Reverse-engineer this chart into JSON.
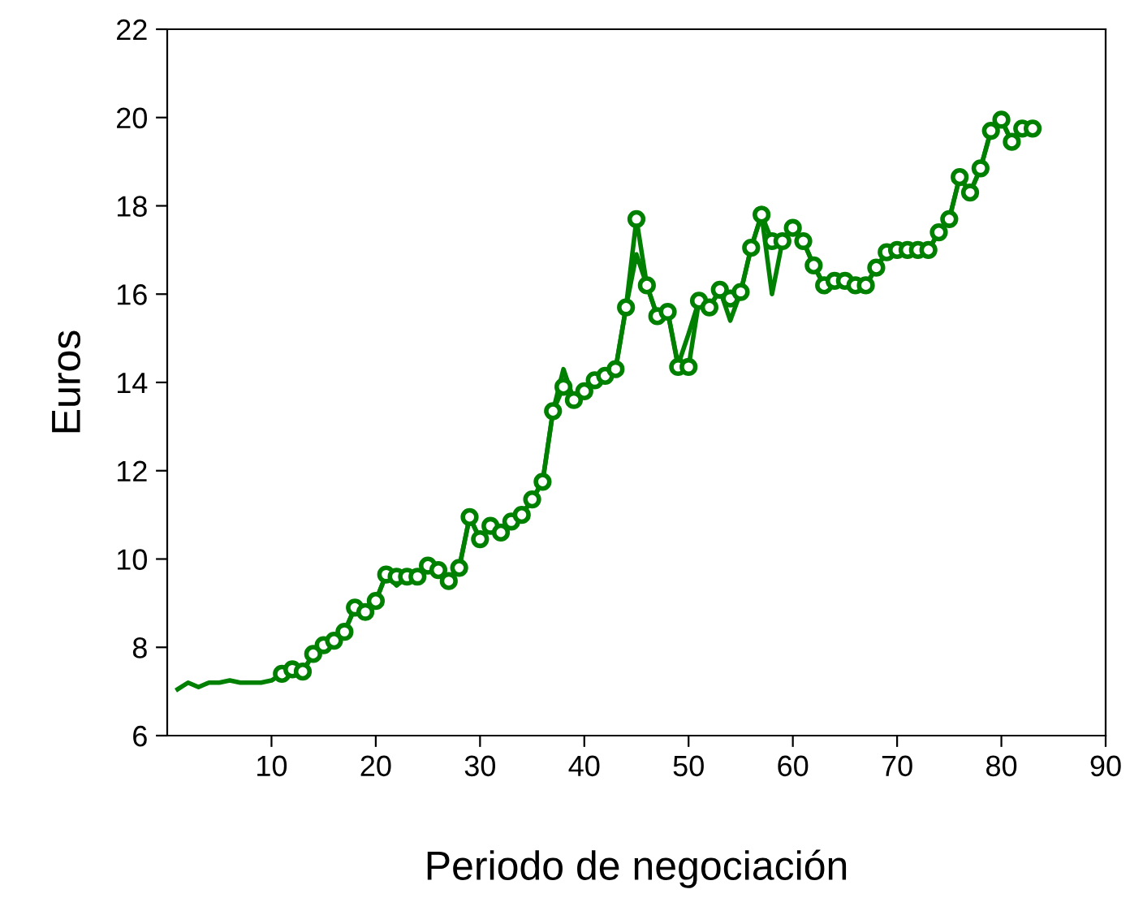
{
  "chart_data": {
    "type": "line",
    "xlabel": "Periodo de negociación",
    "ylabel": "Euros",
    "xlim": [
      0,
      90
    ],
    "xticks": [
      10,
      20,
      30,
      40,
      50,
      60,
      70,
      80,
      90
    ],
    "ylim": [
      6,
      22
    ],
    "yticks": [
      6,
      8,
      10,
      12,
      14,
      16,
      18,
      20,
      22
    ],
    "grid": false,
    "legend": false,
    "series": [
      {
        "color": "#008000",
        "marker": "circle",
        "x": [
          11,
          12,
          13,
          14,
          15,
          16,
          17,
          18,
          19,
          20,
          21,
          22,
          23,
          24,
          25,
          26,
          27,
          28,
          29,
          30,
          31,
          32,
          33,
          34,
          35,
          36,
          37,
          38,
          39,
          40,
          41,
          42,
          43,
          44,
          45,
          46,
          47,
          48,
          49,
          50,
          51,
          52,
          53,
          54,
          55,
          56,
          57,
          58,
          59,
          60,
          61,
          62,
          63,
          64,
          65,
          66,
          67,
          68,
          69,
          70,
          71,
          72,
          73,
          74,
          75,
          76,
          77,
          78,
          79,
          80,
          81,
          82,
          83
        ],
        "values": [
          7.4,
          7.5,
          7.45,
          7.85,
          8.05,
          8.15,
          8.35,
          8.9,
          8.8,
          9.05,
          9.65,
          9.6,
          9.6,
          9.6,
          9.85,
          9.75,
          9.5,
          9.8,
          10.95,
          10.45,
          10.75,
          10.6,
          10.85,
          11.0,
          11.35,
          11.75,
          13.35,
          13.9,
          13.6,
          13.8,
          14.05,
          14.15,
          14.3,
          15.7,
          17.7,
          16.2,
          15.5,
          15.6,
          14.35,
          14.35,
          15.85,
          15.7,
          16.1,
          15.9,
          16.05,
          17.05,
          17.8,
          17.2,
          17.2,
          17.5,
          17.2,
          16.65,
          16.2,
          16.3,
          16.3,
          16.2,
          16.2,
          16.6,
          16.95,
          17.0,
          17.0,
          17.0,
          17.0,
          17.4,
          17.7,
          18.65,
          18.3,
          18.85,
          19.7,
          19.95,
          19.45,
          19.75,
          19.75
        ]
      },
      {
        "color": "#008000",
        "marker": "none",
        "x": [
          1,
          2,
          3,
          4,
          5,
          6,
          7,
          8,
          9,
          10,
          11,
          12,
          13,
          14,
          15,
          16,
          17,
          18,
          19,
          20,
          21,
          22,
          23,
          24,
          25,
          26,
          27,
          28,
          29,
          30,
          31,
          32,
          33,
          34,
          35,
          36,
          37,
          38,
          39,
          40,
          41,
          42,
          43,
          44,
          45,
          46,
          47,
          48,
          49,
          50,
          51,
          52,
          53,
          54,
          55,
          56,
          57,
          58,
          59,
          60,
          61,
          62,
          63,
          64,
          65,
          66,
          67,
          68,
          69,
          70,
          71,
          72,
          73,
          74,
          75,
          76,
          77,
          78,
          79,
          80,
          81,
          82,
          83
        ],
        "values": [
          7.05,
          7.2,
          7.1,
          7.2,
          7.2,
          7.25,
          7.2,
          7.2,
          7.2,
          7.25,
          7.4,
          7.5,
          7.45,
          7.85,
          8.05,
          8.15,
          8.35,
          8.9,
          8.8,
          9.05,
          9.65,
          9.4,
          9.6,
          9.6,
          9.85,
          9.75,
          9.5,
          9.8,
          10.95,
          10.45,
          10.75,
          10.6,
          10.85,
          11.0,
          11.35,
          11.75,
          13.35,
          14.3,
          13.6,
          13.8,
          14.05,
          14.15,
          14.3,
          15.7,
          16.9,
          16.2,
          15.5,
          15.6,
          14.4,
          15.1,
          15.85,
          15.7,
          16.1,
          15.4,
          16.05,
          17.05,
          17.8,
          16.0,
          17.2,
          17.5,
          17.2,
          16.65,
          16.2,
          16.3,
          16.3,
          16.2,
          16.2,
          16.6,
          16.95,
          17.0,
          17.0,
          17.0,
          17.0,
          17.4,
          17.7,
          18.65,
          18.3,
          18.85,
          19.7,
          19.95,
          19.45,
          19.75,
          19.75
        ]
      }
    ]
  }
}
